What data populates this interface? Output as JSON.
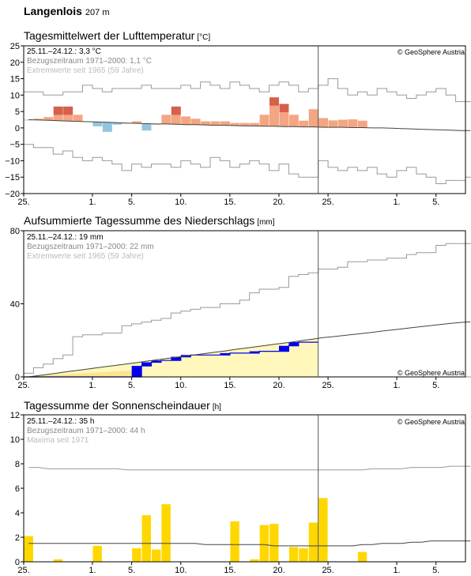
{
  "station": {
    "name": "Langenlois",
    "altitude": "207 m"
  },
  "copyright": "© GeoSphere Austria",
  "x_ticks": [
    "25.",
    "1.",
    "5.",
    "10.",
    "15.",
    "20.",
    "25.",
    "1.",
    "5."
  ],
  "colors": {
    "warm": "#f4a582",
    "warm_record": "#d6604d",
    "cool": "#92c5de",
    "precip_blue": "#0000ee",
    "precip_area": "#fff7bc",
    "precip_area_dark": "#fee391",
    "sun": "#ffd700",
    "envelope": "#999999",
    "mean": "#444444"
  },
  "chart_data": [
    {
      "type": "bar",
      "title": "Tagesmittelwert der Lufttemperatur",
      "unit": "[°C]",
      "info": [
        "25.11.–24.12.: 3,3 °C",
        "Bezugszeitraum 1971–2000: 1,1 °C",
        "Extremwerte seit 1965 (59 Jahre)"
      ],
      "ylim": [
        -20,
        25
      ],
      "yticks": [
        "25",
        "20",
        "15",
        "10",
        "5",
        "0",
        "−5",
        "−10",
        "−15",
        "−20"
      ],
      "x_range": [
        0,
        45
      ],
      "current_day_marker": 30,
      "daily_mean": [
        2.5,
        2.8,
        3.3,
        6.5,
        6.5,
        4,
        2,
        0.5,
        -1.2,
        1,
        1.5,
        2,
        -0.8,
        1.2,
        4,
        6.5,
        3.5,
        2.8,
        2,
        2,
        2,
        1.5,
        1.5,
        1.5,
        4,
        9.3,
        7.3,
        4,
        2.2,
        5.7,
        3,
        2.3,
        2.5,
        2.6,
        2.2
      ],
      "reference_mean": [
        2.5,
        2.4,
        2.3,
        2.2,
        2.1,
        2.0,
        1.9,
        1.8,
        1.7,
        1.6,
        1.5,
        1.4,
        1.3,
        1.2,
        1.2,
        1.1,
        1.0,
        1.0,
        0.9,
        0.8,
        0.8,
        0.7,
        0.6,
        0.6,
        0.5,
        0.5,
        0.4,
        0.4,
        0.3,
        0.3,
        0.2,
        0.2,
        0.2,
        0.1,
        0.1,
        0.0,
        0.0,
        -0.1,
        -0.2,
        -0.3,
        -0.4,
        -0.5,
        -0.6,
        -0.7,
        -0.8,
        -0.8
      ],
      "record_max": [
        11,
        11,
        10,
        10,
        11,
        11,
        13,
        12,
        11,
        12,
        12,
        12,
        13,
        12,
        12,
        12,
        13,
        12,
        14,
        13,
        12,
        14,
        13,
        12,
        11,
        13,
        14,
        13,
        11,
        12,
        13,
        15,
        12,
        10,
        11,
        10,
        12,
        11,
        10,
        9,
        10,
        11,
        12,
        10,
        8,
        8
      ],
      "record_min": [
        -5,
        -6,
        -6,
        -8,
        -7,
        -9,
        -10,
        -9,
        -10,
        -11,
        -13,
        -11,
        -12,
        -11,
        -11,
        -12,
        -10,
        -11,
        -12,
        -9,
        -10,
        -12,
        -11,
        -10,
        -11,
        -13,
        -11,
        -14,
        -15,
        -15,
        -10,
        -12,
        -13,
        -12,
        -13,
        -12,
        -14,
        -15,
        -13,
        -12,
        -14,
        -15,
        -17,
        -16,
        -16,
        -15
      ]
    },
    {
      "type": "area",
      "title": "Aufsummierte Tagessumme des Niederschlags",
      "unit": "[mm]",
      "info": [
        "25.11.–24.12.: 19 mm",
        "Bezugszeitraum 1971–2000: 22 mm",
        "Extremwerte seit 1965 (59 Jahre)"
      ],
      "ylim": [
        0,
        80
      ],
      "yticks": [
        "80",
        "40",
        "0"
      ],
      "x_range": [
        0,
        45
      ],
      "current_day_marker": 30,
      "cumulative_precip": [
        0,
        0,
        0,
        0,
        0,
        0,
        0,
        0,
        0,
        0,
        0,
        0,
        6,
        8,
        9,
        9,
        11,
        12,
        12,
        12,
        12,
        13,
        13,
        13,
        14,
        14,
        14,
        17,
        19,
        19,
        19
      ],
      "reference_cumulative": [
        0,
        0.7,
        1.4,
        2.1,
        2.9,
        3.6,
        4.3,
        5,
        5.7,
        6.4,
        7.1,
        7.8,
        8.6,
        9.3,
        10,
        10.7,
        11.4,
        12.1,
        12.8,
        13.5,
        14.2,
        15,
        15.7,
        16.4,
        17.1,
        17.8,
        18.5,
        19.2,
        20,
        20.7,
        21.5,
        22,
        22.6,
        23.2,
        23.8,
        24.4,
        25.1,
        25.7,
        26.3,
        26.9,
        27.5,
        28.1,
        28.7,
        29.3,
        29.8,
        30.2
      ],
      "record_max_cumulative": [
        2,
        5,
        7,
        10,
        12,
        22,
        23,
        23,
        24,
        24,
        28,
        29,
        30,
        31,
        32,
        35,
        36,
        37,
        38,
        38,
        40,
        40,
        42,
        46,
        48,
        48,
        49,
        55,
        56,
        57,
        59,
        59,
        60,
        63,
        63,
        64,
        64,
        65,
        65,
        67,
        68,
        68,
        72,
        73,
        73,
        73
      ],
      "record_min_cumulative": [
        0,
        0,
        0,
        0,
        0,
        0,
        0,
        0,
        0,
        0,
        0,
        0,
        0,
        0,
        0,
        0,
        0,
        0,
        0,
        0,
        0,
        0,
        0,
        0,
        0,
        0,
        0,
        0,
        0,
        0,
        0,
        0,
        0,
        0,
        0,
        0,
        0,
        0,
        0,
        0,
        0,
        0,
        0,
        0,
        0,
        0
      ]
    },
    {
      "type": "bar",
      "title": "Tagessumme der Sonnenscheindauer",
      "unit": "[h]",
      "info": [
        "25.11.–24.12.: 35 h",
        "Bezugszeitraum 1971–2000: 44 h",
        "Maxima seit 1971"
      ],
      "ylim": [
        0,
        12
      ],
      "yticks": [
        "12",
        "10",
        "8",
        "6",
        "4",
        "2",
        "0"
      ],
      "x_range": [
        0,
        45
      ],
      "current_day_marker": 30,
      "daily_sunshine": [
        2.1,
        0,
        0,
        0.2,
        0,
        0,
        0,
        1.3,
        0,
        0,
        0,
        1.1,
        3.8,
        1.0,
        4.7,
        0,
        0,
        0,
        0,
        0,
        0,
        3.3,
        0,
        0.2,
        3.0,
        3.1,
        0,
        1.2,
        1.1,
        3.2,
        5.2,
        0,
        0,
        0,
        0.8
      ],
      "reference_mean": [
        1.5,
        1.5,
        1.5,
        1.5,
        1.5,
        1.5,
        1.5,
        1.5,
        1.5,
        1.5,
        1.5,
        1.5,
        1.5,
        1.5,
        1.5,
        1.5,
        1.5,
        1.5,
        1.4,
        1.4,
        1.4,
        1.4,
        1.4,
        1.4,
        1.4,
        1.3,
        1.3,
        1.3,
        1.3,
        1.3,
        1.3,
        1.3,
        1.3,
        1.3,
        1.4,
        1.4,
        1.5,
        1.5,
        1.5,
        1.6,
        1.6,
        1.7,
        1.7,
        1.7,
        1.7,
        1.7
      ],
      "record_max": [
        7.7,
        7.7,
        7.6,
        7.6,
        7.6,
        7.6,
        7.6,
        7.6,
        7.6,
        7.6,
        7.5,
        7.5,
        7.5,
        7.5,
        7.5,
        7.5,
        7.5,
        7.5,
        7.5,
        7.5,
        7.5,
        7.5,
        7.5,
        7.5,
        7.5,
        7.5,
        7.5,
        7.5,
        7.5,
        7.5,
        7.5,
        7.5,
        7.5,
        7.5,
        7.5,
        7.6,
        7.6,
        7.6,
        7.6,
        7.7,
        7.7,
        7.7,
        7.7,
        7.8,
        7.8,
        7.8
      ]
    }
  ]
}
